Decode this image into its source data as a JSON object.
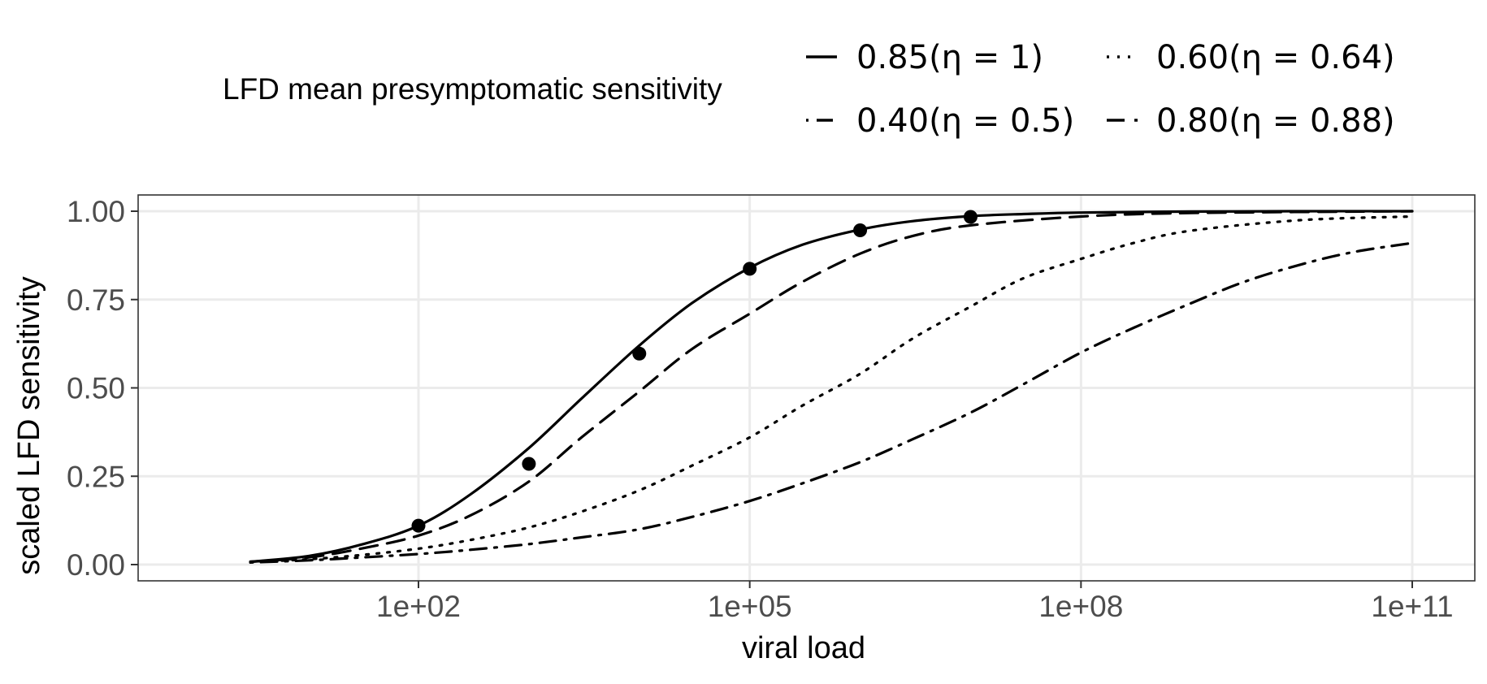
{
  "chart_data": {
    "type": "line",
    "xlabel": "viral load",
    "ylabel": "scaled LFD sensitivity",
    "x_scale": "log10",
    "xlim": [
      1,
      100000000000
    ],
    "ylim": [
      0,
      1
    ],
    "x_ticks": [
      100,
      100000,
      100000000,
      100000000000
    ],
    "x_tick_labels": [
      "1e+02",
      "1e+05",
      "1e+08",
      "1e+11"
    ],
    "y_ticks": [
      0,
      0.25,
      0.5,
      0.75,
      1
    ],
    "y_tick_labels": [
      "0.00",
      "0.25",
      "0.50",
      "0.75",
      "1.00"
    ],
    "grid": true,
    "legend": {
      "title": "LFD mean presymptomatic sensitivity",
      "position": "top"
    },
    "series": [
      {
        "name": "0.85(η = 1)",
        "linetype": "solid",
        "x": [
          3,
          10,
          30,
          100,
          300,
          1000,
          3000,
          10000,
          30000,
          100000,
          300000,
          1000000,
          3000000,
          10000000,
          30000000,
          100000000,
          1000000000,
          10000000000,
          100000000000
        ],
        "values": [
          0.008,
          0.024,
          0.056,
          0.11,
          0.2,
          0.33,
          0.47,
          0.62,
          0.74,
          0.84,
          0.905,
          0.948,
          0.972,
          0.986,
          0.992,
          0.996,
          0.999,
          1.0,
          1.0
        ]
      },
      {
        "name": "0.40(η = 0.5)",
        "linetype": "dotdash",
        "x": [
          3,
          10,
          30,
          100,
          300,
          1000,
          3000,
          10000,
          30000,
          100000,
          300000,
          1000000,
          3000000,
          10000000,
          30000000,
          100000000,
          300000000,
          1000000000,
          3000000000,
          10000000000,
          30000000000,
          100000000000
        ],
        "values": [
          0.006,
          0.012,
          0.02,
          0.03,
          0.042,
          0.058,
          0.077,
          0.1,
          0.135,
          0.18,
          0.23,
          0.29,
          0.355,
          0.43,
          0.51,
          0.6,
          0.67,
          0.74,
          0.8,
          0.85,
          0.885,
          0.91
        ]
      },
      {
        "name": "0.60(η = 0.64)",
        "linetype": "dotted",
        "x": [
          3,
          10,
          30,
          100,
          300,
          1000,
          3000,
          10000,
          30000,
          100000,
          300000,
          1000000,
          3000000,
          10000000,
          30000000,
          100000000,
          300000000,
          1000000000,
          10000000000,
          100000000000
        ],
        "values": [
          0.007,
          0.015,
          0.027,
          0.045,
          0.07,
          0.105,
          0.15,
          0.21,
          0.28,
          0.36,
          0.45,
          0.54,
          0.64,
          0.73,
          0.81,
          0.865,
          0.91,
          0.945,
          0.975,
          0.985
        ]
      },
      {
        "name": "0.80(η = 0.88)",
        "linetype": "dashed",
        "x": [
          3,
          10,
          30,
          100,
          300,
          1000,
          3000,
          10000,
          30000,
          100000,
          300000,
          1000000,
          3000000,
          10000000,
          100000000,
          1000000000,
          100000000000
        ],
        "values": [
          0.008,
          0.02,
          0.045,
          0.082,
          0.14,
          0.235,
          0.36,
          0.49,
          0.61,
          0.71,
          0.8,
          0.88,
          0.93,
          0.96,
          0.985,
          0.995,
          1.0
        ]
      }
    ],
    "points": [
      {
        "x": 100,
        "y": 0.11
      },
      {
        "x": 1000,
        "y": 0.285
      },
      {
        "x": 10000,
        "y": 0.597
      },
      {
        "x": 100000,
        "y": 0.837
      },
      {
        "x": 1000000,
        "y": 0.946
      },
      {
        "x": 10000000,
        "y": 0.984
      }
    ]
  },
  "colors": {
    "background": "#ffffff",
    "line": "#000000",
    "grid": "#ebebeb",
    "panel_border": "#333333",
    "tick_text": "#4d4d4d"
  }
}
